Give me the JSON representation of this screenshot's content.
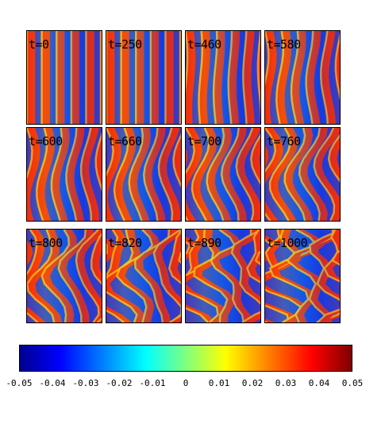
{
  "panels": [
    {
      "label": "t=0"
    },
    {
      "label": "t=250"
    },
    {
      "label": "t=460"
    },
    {
      "label": "t=580"
    },
    {
      "label": "t=600"
    },
    {
      "label": "t=660"
    },
    {
      "label": "t=700"
    },
    {
      "label": "t=760"
    },
    {
      "label": "t=800"
    },
    {
      "label": "t=820"
    },
    {
      "label": "t=890"
    },
    {
      "label": "t=1000"
    }
  ],
  "colorbar": {
    "min": -0.05,
    "max": 0.05,
    "colormap": "jet",
    "ticks": [
      "-0.05",
      "-0.04",
      "-0.03",
      "-0.02",
      "-0.01",
      "0",
      "0.01",
      "0.02",
      "0.03",
      "0.04",
      "0.05"
    ]
  }
}
